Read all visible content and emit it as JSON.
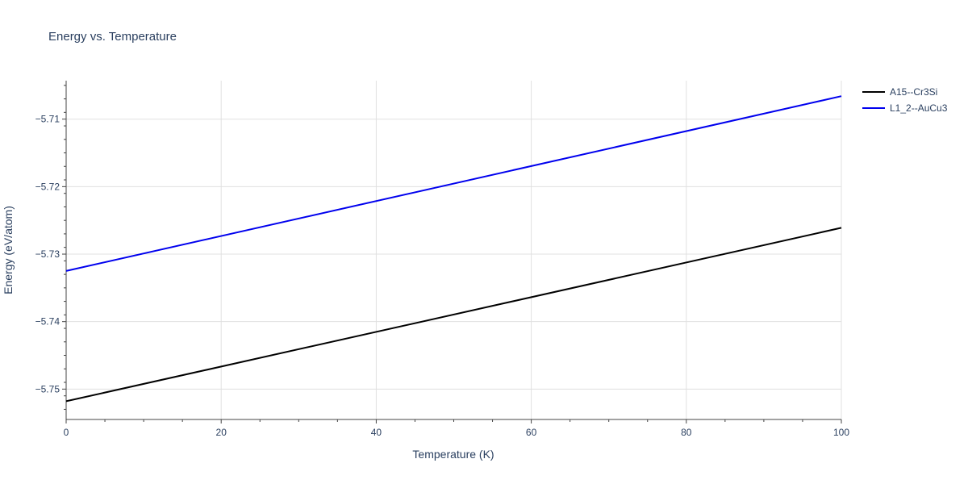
{
  "chart_data": {
    "type": "line",
    "title": "Energy vs. Temperature",
    "xlabel": "Temperature (K)",
    "ylabel": "Energy (eV/atom)",
    "xlim": [
      0,
      100
    ],
    "ylim": [
      -5.7545,
      -5.7043
    ],
    "x_ticks": [
      0,
      20,
      40,
      60,
      80,
      100
    ],
    "x_tick_labels": [
      "0",
      "20",
      "40",
      "60",
      "80",
      "100"
    ],
    "y_ticks": [
      -5.75,
      -5.74,
      -5.73,
      -5.72,
      -5.71
    ],
    "y_tick_labels": [
      "−5.75",
      "−5.74",
      "−5.73",
      "−5.72",
      "−5.71"
    ],
    "grid": true,
    "legend_position": "top-right",
    "series": [
      {
        "name": "A15--Cr3Si",
        "color": "#000000",
        "x": [
          0,
          100
        ],
        "y": [
          -5.7518,
          -5.7261
        ]
      },
      {
        "name": "L1_2--AuCu3",
        "color": "#0000ee",
        "x": [
          0,
          100
        ],
        "y": [
          -5.7325,
          -5.7066
        ]
      }
    ]
  }
}
